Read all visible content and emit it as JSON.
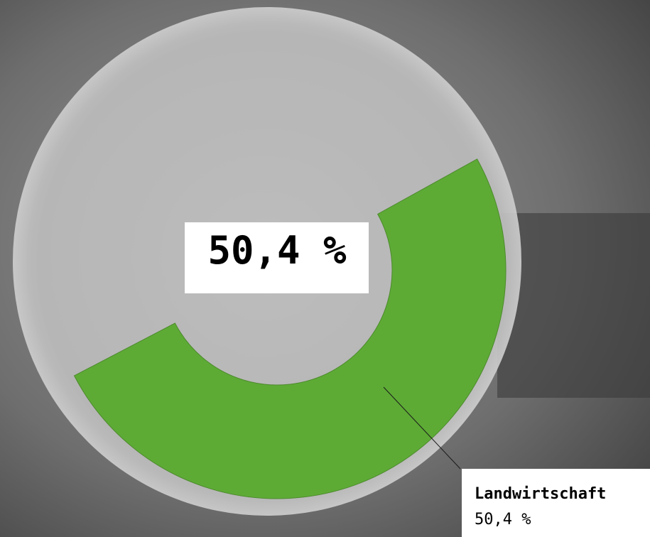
{
  "chart_data": {
    "type": "donut",
    "center_label": "50,4 %",
    "series": [
      {
        "name": "Landwirtschaft",
        "color": "#5dab35",
        "values": [
          50.4
        ],
        "value_labels": [
          "50,4 %"
        ]
      }
    ]
  }
}
